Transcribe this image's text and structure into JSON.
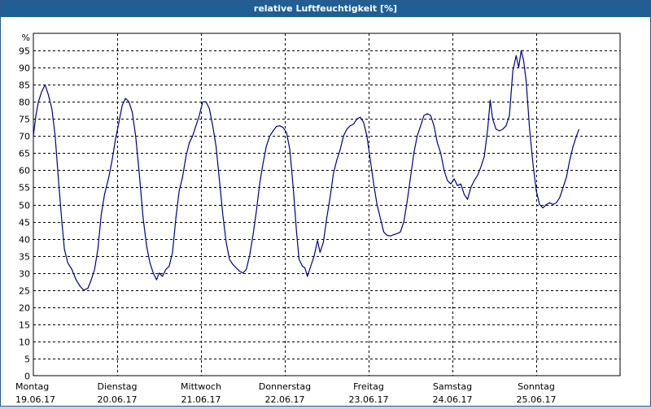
{
  "window": {
    "title": "relative Luftfeuchtigkeit [%]"
  },
  "chart_data": {
    "type": "line",
    "title": "relative Luftfeuchtigkeit [%]",
    "ylabel": "%",
    "ylim": [
      0,
      100
    ],
    "yticks": [
      0,
      5,
      10,
      15,
      20,
      25,
      30,
      35,
      40,
      45,
      50,
      55,
      60,
      65,
      70,
      75,
      80,
      85,
      90,
      95
    ],
    "xlim": [
      0,
      7
    ],
    "x_unit": "days from Montag 19.06.17",
    "grid": true,
    "day_labels": [
      {
        "day": "Montag",
        "date": "19.06.17"
      },
      {
        "day": "Dienstag",
        "date": "20.06.17"
      },
      {
        "day": "Mittwoch",
        "date": "21.06.17"
      },
      {
        "day": "Donnerstag",
        "date": "22.06.17"
      },
      {
        "day": "Freitag",
        "date": "23.06.17"
      },
      {
        "day": "Samstag",
        "date": "24.06.17"
      },
      {
        "day": "Sonntag",
        "date": "25.06.17"
      }
    ],
    "line_color": "#00008b",
    "series": [
      {
        "name": "relative Luftfeuchtigkeit",
        "points": [
          [
            0.0,
            70
          ],
          [
            0.03,
            76
          ],
          [
            0.06,
            80
          ],
          [
            0.1,
            83
          ],
          [
            0.14,
            85
          ],
          [
            0.18,
            82
          ],
          [
            0.22,
            78
          ],
          [
            0.26,
            70
          ],
          [
            0.3,
            57
          ],
          [
            0.34,
            45
          ],
          [
            0.37,
            37
          ],
          [
            0.41,
            33
          ],
          [
            0.46,
            31
          ],
          [
            0.51,
            28
          ],
          [
            0.56,
            26
          ],
          [
            0.6,
            25
          ],
          [
            0.65,
            25.5
          ],
          [
            0.69,
            28
          ],
          [
            0.73,
            31
          ],
          [
            0.77,
            37
          ],
          [
            0.81,
            47
          ],
          [
            0.85,
            53
          ],
          [
            0.9,
            58
          ],
          [
            0.94,
            63
          ],
          [
            0.98,
            69
          ],
          [
            1.02,
            74
          ],
          [
            1.06,
            79
          ],
          [
            1.1,
            81
          ],
          [
            1.14,
            80
          ],
          [
            1.18,
            77
          ],
          [
            1.22,
            70
          ],
          [
            1.26,
            60
          ],
          [
            1.31,
            46
          ],
          [
            1.35,
            38
          ],
          [
            1.39,
            33
          ],
          [
            1.43,
            30
          ],
          [
            1.47,
            28
          ],
          [
            1.5,
            30
          ],
          [
            1.54,
            29
          ],
          [
            1.58,
            31
          ],
          [
            1.62,
            32
          ],
          [
            1.66,
            36
          ],
          [
            1.7,
            46
          ],
          [
            1.74,
            54
          ],
          [
            1.78,
            58
          ],
          [
            1.82,
            64
          ],
          [
            1.86,
            68
          ],
          [
            1.9,
            70
          ],
          [
            1.94,
            73
          ],
          [
            1.98,
            76
          ],
          [
            2.02,
            80
          ],
          [
            2.06,
            80
          ],
          [
            2.1,
            78
          ],
          [
            2.14,
            73
          ],
          [
            2.18,
            67
          ],
          [
            2.22,
            57
          ],
          [
            2.26,
            47
          ],
          [
            2.3,
            39
          ],
          [
            2.34,
            34
          ],
          [
            2.38,
            32.5
          ],
          [
            2.42,
            31.5
          ],
          [
            2.46,
            30.5
          ],
          [
            2.5,
            30
          ],
          [
            2.54,
            31
          ],
          [
            2.58,
            35
          ],
          [
            2.62,
            41
          ],
          [
            2.66,
            48
          ],
          [
            2.7,
            56
          ],
          [
            2.74,
            62
          ],
          [
            2.78,
            67
          ],
          [
            2.82,
            70
          ],
          [
            2.86,
            71.5
          ],
          [
            2.9,
            72.8
          ],
          [
            2.94,
            73
          ],
          [
            2.98,
            72.5
          ],
          [
            3.02,
            71
          ],
          [
            3.06,
            66
          ],
          [
            3.1,
            55
          ],
          [
            3.14,
            42
          ],
          [
            3.17,
            34
          ],
          [
            3.21,
            32
          ],
          [
            3.24,
            31.5
          ],
          [
            3.27,
            29
          ],
          [
            3.31,
            32
          ],
          [
            3.35,
            35
          ],
          [
            3.39,
            39.5
          ],
          [
            3.42,
            36
          ],
          [
            3.46,
            39
          ],
          [
            3.5,
            46
          ],
          [
            3.54,
            52
          ],
          [
            3.58,
            59
          ],
          [
            3.62,
            63
          ],
          [
            3.66,
            66
          ],
          [
            3.7,
            70
          ],
          [
            3.74,
            72
          ],
          [
            3.78,
            73
          ],
          [
            3.82,
            73.5
          ],
          [
            3.86,
            75
          ],
          [
            3.9,
            75.5
          ],
          [
            3.94,
            74
          ],
          [
            3.98,
            70
          ],
          [
            4.02,
            63
          ],
          [
            4.06,
            56
          ],
          [
            4.1,
            50
          ],
          [
            4.14,
            46
          ],
          [
            4.18,
            42
          ],
          [
            4.22,
            41
          ],
          [
            4.26,
            40.8
          ],
          [
            4.3,
            41.2
          ],
          [
            4.34,
            41.5
          ],
          [
            4.38,
            42
          ],
          [
            4.42,
            45
          ],
          [
            4.46,
            51
          ],
          [
            4.5,
            58
          ],
          [
            4.54,
            65
          ],
          [
            4.58,
            70
          ],
          [
            4.62,
            73
          ],
          [
            4.66,
            76
          ],
          [
            4.7,
            76.5
          ],
          [
            4.74,
            76
          ],
          [
            4.78,
            73
          ],
          [
            4.82,
            68
          ],
          [
            4.86,
            65
          ],
          [
            4.9,
            60
          ],
          [
            4.94,
            57
          ],
          [
            4.98,
            56
          ],
          [
            5.02,
            57.5
          ],
          [
            5.06,
            55.5
          ],
          [
            5.1,
            56
          ],
          [
            5.14,
            53
          ],
          [
            5.18,
            51.5
          ],
          [
            5.22,
            55
          ],
          [
            5.26,
            57
          ],
          [
            5.3,
            58.5
          ],
          [
            5.34,
            61
          ],
          [
            5.38,
            64
          ],
          [
            5.42,
            72
          ],
          [
            5.45,
            80.5
          ],
          [
            5.48,
            75
          ],
          [
            5.52,
            72
          ],
          [
            5.56,
            71.5
          ],
          [
            5.6,
            72
          ],
          [
            5.64,
            73
          ],
          [
            5.68,
            76
          ],
          [
            5.72,
            89
          ],
          [
            5.76,
            93.5
          ],
          [
            5.79,
            90
          ],
          [
            5.82,
            95
          ],
          [
            5.85,
            92
          ],
          [
            5.88,
            86
          ],
          [
            5.92,
            72
          ],
          [
            5.96,
            62
          ],
          [
            6.0,
            54
          ],
          [
            6.04,
            50
          ],
          [
            6.08,
            49
          ],
          [
            6.12,
            50
          ],
          [
            6.16,
            50.5
          ],
          [
            6.2,
            50
          ],
          [
            6.24,
            50.5
          ],
          [
            6.28,
            52
          ],
          [
            6.32,
            55
          ],
          [
            6.36,
            58
          ],
          [
            6.4,
            63
          ],
          [
            6.44,
            67
          ],
          [
            6.48,
            70
          ],
          [
            6.51,
            72
          ]
        ]
      }
    ]
  }
}
